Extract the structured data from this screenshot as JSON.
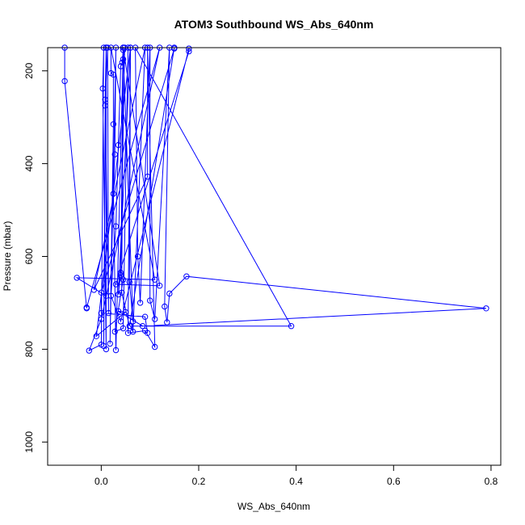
{
  "chart_data": {
    "type": "line",
    "title": "ATOM3 Southbound WS_Abs_640nm",
    "xlabel": "WS_Abs_640nm",
    "ylabel": "Pressure (mbar)",
    "xlim": [
      -0.11,
      0.82
    ],
    "ylim": [
      1050,
      150
    ],
    "y_reversed": true,
    "xticks": [
      0.0,
      0.2,
      0.4,
      0.6,
      0.8
    ],
    "xtick_labels": [
      "0.0",
      "0.2",
      "0.4",
      "0.6",
      "0.8"
    ],
    "yticks": [
      200,
      400,
      600,
      800,
      1000
    ],
    "ytick_labels": [
      "200",
      "400",
      "600",
      "800",
      "1000"
    ],
    "grid": false,
    "marker": "open-circle",
    "series_color": "#0000ff",
    "points": [
      {
        "x": -0.075,
        "y": 150
      },
      {
        "x": -0.075,
        "y": 222
      },
      {
        "x": -0.03,
        "y": 712
      },
      {
        "x": -0.03,
        "y": 710
      },
      {
        "x": 0.12,
        "y": 150
      },
      {
        "x": 0.0,
        "y": 735
      },
      {
        "x": -0.025,
        "y": 803
      },
      {
        "x": 0.0,
        "y": 790
      },
      {
        "x": 0.005,
        "y": 150
      },
      {
        "x": 0.003,
        "y": 238
      },
      {
        "x": 0.01,
        "y": 800
      },
      {
        "x": 0.01,
        "y": 150
      },
      {
        "x": 0.008,
        "y": 262
      },
      {
        "x": 0.015,
        "y": 722
      },
      {
        "x": 0.013,
        "y": 150
      },
      {
        "x": 0.008,
        "y": 275
      },
      {
        "x": 0.005,
        "y": 793
      },
      {
        "x": 0.01,
        "y": 150
      },
      {
        "x": 0.01,
        "y": 685
      },
      {
        "x": -0.05,
        "y": 646
      },
      {
        "x": 0.11,
        "y": 650
      },
      {
        "x": 0.02,
        "y": 150
      },
      {
        "x": 0.02,
        "y": 205
      },
      {
        "x": 0.025,
        "y": 208
      },
      {
        "x": 0.025,
        "y": 315
      },
      {
        "x": 0.018,
        "y": 788
      },
      {
        "x": 0.03,
        "y": 150
      },
      {
        "x": 0.028,
        "y": 380
      },
      {
        "x": 0.025,
        "y": 465
      },
      {
        "x": 0.03,
        "y": 802
      },
      {
        "x": 0.045,
        "y": 155
      },
      {
        "x": 0.043,
        "y": 182
      },
      {
        "x": 0.04,
        "y": 190
      },
      {
        "x": 0.035,
        "y": 360
      },
      {
        "x": 0.03,
        "y": 535
      },
      {
        "x": 0.02,
        "y": 685
      },
      {
        "x": 0.04,
        "y": 740
      },
      {
        "x": 0.18,
        "y": 152
      },
      {
        "x": 0.18,
        "y": 158
      },
      {
        "x": 0.03,
        "y": 660
      },
      {
        "x": 0.12,
        "y": 663
      },
      {
        "x": 0.045,
        "y": 150
      },
      {
        "x": 0.045,
        "y": 175
      },
      {
        "x": 0.04,
        "y": 640
      },
      {
        "x": 0.045,
        "y": 650
      },
      {
        "x": 0.028,
        "y": 762
      },
      {
        "x": 0.045,
        "y": 755
      },
      {
        "x": 0.055,
        "y": 150
      },
      {
        "x": 0.048,
        "y": 150
      },
      {
        "x": 0.04,
        "y": 635
      },
      {
        "x": 0.035,
        "y": 682
      },
      {
        "x": 0.06,
        "y": 150
      },
      {
        "x": 0.055,
        "y": 765
      },
      {
        "x": 0.09,
        "y": 760
      },
      {
        "x": 0.11,
        "y": 795
      },
      {
        "x": 0.095,
        "y": 150
      },
      {
        "x": 0.095,
        "y": 428
      },
      {
        "x": -0.015,
        "y": 672
      },
      {
        "x": 0.09,
        "y": 150
      },
      {
        "x": 0.065,
        "y": 762
      },
      {
        "x": 0.06,
        "y": 750
      },
      {
        "x": 0.39,
        "y": 750
      },
      {
        "x": 0.07,
        "y": 150
      },
      {
        "x": 0.075,
        "y": 600
      },
      {
        "x": 0.08,
        "y": 700
      },
      {
        "x": 0.1,
        "y": 150
      },
      {
        "x": 0.1,
        "y": 695
      },
      {
        "x": 0.11,
        "y": 735
      },
      {
        "x": 0.14,
        "y": 150
      },
      {
        "x": 0.13,
        "y": 708
      },
      {
        "x": 0.135,
        "y": 742
      },
      {
        "x": 0.14,
        "y": 680
      },
      {
        "x": 0.175,
        "y": 643
      },
      {
        "x": 0.79,
        "y": 712
      },
      {
        "x": 0.085,
        "y": 750
      },
      {
        "x": 0.035,
        "y": 718
      },
      {
        "x": 0.05,
        "y": 720
      },
      {
        "x": -0.01,
        "y": 772
      },
      {
        "x": 0.06,
        "y": 150
      },
      {
        "x": 0.058,
        "y": 655
      },
      {
        "x": 0.065,
        "y": 740
      },
      {
        "x": 0.045,
        "y": 150
      },
      {
        "x": 0.042,
        "y": 678
      },
      {
        "x": 0.058,
        "y": 750
      },
      {
        "x": 0.15,
        "y": 150
      },
      {
        "x": 0.15,
        "y": 152
      },
      {
        "x": 0.0,
        "y": 678
      },
      {
        "x": 0.0,
        "y": 722
      },
      {
        "x": 0.09,
        "y": 730
      },
      {
        "x": 0.095,
        "y": 765
      }
    ]
  }
}
